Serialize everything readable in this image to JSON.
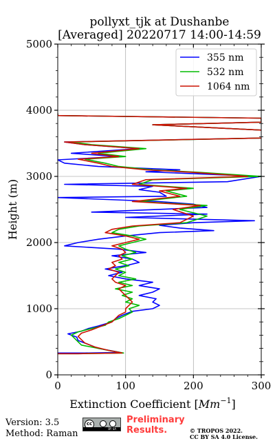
{
  "header": {
    "title_line1": "pollyxt_tjk at Dushanbe",
    "title_line2": "[Averaged] 20220717 14:00-14:59"
  },
  "footer": {
    "version": "Version: 3.5",
    "method": "Method: Raman",
    "preliminary_line1": "Preliminary",
    "preliminary_line2": "Results.",
    "copyright_line1": "© TROPOS 2022.",
    "copyright_line2": "CC BY SA 4.0 License.",
    "license_icon": "cc-by-sa-icon"
  },
  "chart_data": {
    "type": "line",
    "title": "pollyxt_tjk at Dushanbe [Averaged] 20220717 14:00-14:59",
    "xlabel": "Extinction Coefficient [Mm^-1]",
    "ylabel": "Height (m)",
    "xlim": [
      0,
      300
    ],
    "ylim": [
      0,
      5000
    ],
    "xticks": [
      0,
      100,
      200,
      300
    ],
    "yticks": [
      0,
      1000,
      2000,
      3000,
      4000,
      5000
    ],
    "grid": true,
    "legend_position": "top-right",
    "series": [
      {
        "name": "355 nm",
        "color": "#0000ff",
        "points": [
          [
            0,
            330
          ],
          [
            40,
            330
          ],
          [
            92,
            340
          ],
          [
            60,
            400
          ],
          [
            45,
            460
          ],
          [
            30,
            520
          ],
          [
            28,
            570
          ],
          [
            15,
            620
          ],
          [
            35,
            660
          ],
          [
            45,
            700
          ],
          [
            60,
            740
          ],
          [
            80,
            800
          ],
          [
            85,
            850
          ],
          [
            95,
            900
          ],
          [
            110,
            960
          ],
          [
            140,
            1000
          ],
          [
            150,
            1050
          ],
          [
            140,
            1100
          ],
          [
            145,
            1150
          ],
          [
            120,
            1200
          ],
          [
            140,
            1250
          ],
          [
            150,
            1300
          ],
          [
            120,
            1350
          ],
          [
            140,
            1400
          ],
          [
            100,
            1450
          ],
          [
            75,
            1500
          ],
          [
            95,
            1550
          ],
          [
            70,
            1600
          ],
          [
            100,
            1650
          ],
          [
            120,
            1700
          ],
          [
            110,
            1750
          ],
          [
            80,
            1800
          ],
          [
            130,
            1850
          ],
          [
            90,
            1900
          ],
          [
            10,
            1950
          ],
          [
            30,
            2000
          ],
          [
            60,
            2050
          ],
          [
            100,
            2100
          ],
          [
            150,
            2150
          ],
          [
            230,
            2180
          ],
          [
            180,
            2220
          ],
          [
            150,
            2260
          ],
          [
            200,
            2300
          ],
          [
            290,
            2330
          ],
          [
            100,
            2380
          ],
          [
            220,
            2430
          ],
          [
            50,
            2460
          ],
          [
            220,
            2530
          ],
          [
            200,
            2580
          ],
          [
            150,
            2620
          ],
          [
            0,
            2680
          ],
          [
            160,
            2700
          ],
          [
            150,
            2760
          ],
          [
            120,
            2800
          ],
          [
            140,
            2850
          ],
          [
            10,
            2880
          ],
          [
            250,
            2920
          ],
          [
            300,
            3000
          ],
          [
            130,
            3070
          ],
          [
            180,
            3100
          ],
          [
            60,
            3150
          ],
          [
            10,
            3200
          ],
          [
            0,
            3250
          ],
          [
            90,
            3300
          ],
          [
            20,
            3350
          ],
          [
            120,
            3420
          ],
          [
            40,
            3480
          ],
          [
            10,
            3520
          ],
          [
            300,
            3580
          ],
          [
            380,
            3620
          ],
          [
            300,
            3700
          ],
          [
            140,
            3780
          ],
          [
            300,
            3820
          ],
          [
            300,
            3880
          ],
          [
            0,
            3920
          ],
          [
            0,
            3950
          ]
        ]
      },
      {
        "name": "532 nm",
        "color": "#00bb00",
        "points": [
          [
            0,
            320
          ],
          [
            30,
            320
          ],
          [
            97,
            330
          ],
          [
            80,
            360
          ],
          [
            60,
            400
          ],
          [
            35,
            450
          ],
          [
            30,
            500
          ],
          [
            25,
            550
          ],
          [
            20,
            600
          ],
          [
            30,
            650
          ],
          [
            50,
            700
          ],
          [
            70,
            750
          ],
          [
            75,
            800
          ],
          [
            90,
            850
          ],
          [
            100,
            900
          ],
          [
            110,
            950
          ],
          [
            105,
            1000
          ],
          [
            120,
            1050
          ],
          [
            100,
            1100
          ],
          [
            110,
            1150
          ],
          [
            95,
            1200
          ],
          [
            110,
            1250
          ],
          [
            85,
            1300
          ],
          [
            110,
            1350
          ],
          [
            90,
            1400
          ],
          [
            115,
            1450
          ],
          [
            90,
            1500
          ],
          [
            100,
            1550
          ],
          [
            85,
            1600
          ],
          [
            105,
            1650
          ],
          [
            90,
            1700
          ],
          [
            110,
            1750
          ],
          [
            95,
            1800
          ],
          [
            115,
            1850
          ],
          [
            100,
            1900
          ],
          [
            90,
            1950
          ],
          [
            110,
            2000
          ],
          [
            130,
            2050
          ],
          [
            110,
            2100
          ],
          [
            80,
            2150
          ],
          [
            90,
            2200
          ],
          [
            120,
            2250
          ],
          [
            190,
            2300
          ],
          [
            220,
            2400
          ],
          [
            180,
            2500
          ],
          [
            220,
            2560
          ],
          [
            120,
            2620
          ],
          [
            190,
            2700
          ],
          [
            160,
            2780
          ],
          [
            200,
            2820
          ],
          [
            120,
            2880
          ],
          [
            140,
            2950
          ],
          [
            300,
            3000
          ],
          [
            210,
            3060
          ],
          [
            140,
            3100
          ],
          [
            90,
            3150
          ],
          [
            70,
            3200
          ],
          [
            40,
            3260
          ],
          [
            100,
            3300
          ],
          [
            60,
            3350
          ],
          [
            130,
            3420
          ],
          [
            50,
            3480
          ],
          [
            20,
            3520
          ],
          [
            300,
            3580
          ],
          [
            380,
            3620
          ],
          [
            300,
            3700
          ],
          [
            140,
            3780
          ],
          [
            300,
            3820
          ],
          [
            300,
            3880
          ],
          [
            0,
            3920
          ],
          [
            0,
            3950
          ]
        ]
      },
      {
        "name": "1064 nm",
        "color": "#cc1100",
        "points": [
          [
            0,
            320
          ],
          [
            30,
            320
          ],
          [
            95,
            330
          ],
          [
            75,
            370
          ],
          [
            55,
            420
          ],
          [
            40,
            480
          ],
          [
            35,
            530
          ],
          [
            30,
            580
          ],
          [
            35,
            630
          ],
          [
            50,
            680
          ],
          [
            60,
            720
          ],
          [
            70,
            760
          ],
          [
            80,
            800
          ],
          [
            85,
            850
          ],
          [
            90,
            900
          ],
          [
            100,
            950
          ],
          [
            100,
            1000
          ],
          [
            105,
            1050
          ],
          [
            110,
            1100
          ],
          [
            105,
            1150
          ],
          [
            100,
            1200
          ],
          [
            95,
            1250
          ],
          [
            90,
            1300
          ],
          [
            100,
            1350
          ],
          [
            85,
            1400
          ],
          [
            80,
            1450
          ],
          [
            85,
            1500
          ],
          [
            90,
            1550
          ],
          [
            75,
            1600
          ],
          [
            85,
            1650
          ],
          [
            80,
            1700
          ],
          [
            95,
            1750
          ],
          [
            90,
            1800
          ],
          [
            100,
            1850
          ],
          [
            95,
            1900
          ],
          [
            80,
            1950
          ],
          [
            100,
            2000
          ],
          [
            120,
            2050
          ],
          [
            100,
            2100
          ],
          [
            70,
            2150
          ],
          [
            80,
            2200
          ],
          [
            110,
            2250
          ],
          [
            180,
            2300
          ],
          [
            200,
            2400
          ],
          [
            170,
            2500
          ],
          [
            210,
            2560
          ],
          [
            110,
            2620
          ],
          [
            180,
            2700
          ],
          [
            150,
            2780
          ],
          [
            190,
            2820
          ],
          [
            110,
            2880
          ],
          [
            130,
            2950
          ],
          [
            280,
            3000
          ],
          [
            200,
            3060
          ],
          [
            130,
            3100
          ],
          [
            80,
            3150
          ],
          [
            60,
            3200
          ],
          [
            30,
            3260
          ],
          [
            90,
            3300
          ],
          [
            50,
            3350
          ],
          [
            120,
            3420
          ],
          [
            40,
            3480
          ],
          [
            10,
            3520
          ],
          [
            300,
            3580
          ],
          [
            380,
            3620
          ],
          [
            300,
            3700
          ],
          [
            140,
            3780
          ],
          [
            300,
            3820
          ],
          [
            300,
            3880
          ],
          [
            0,
            3920
          ],
          [
            0,
            3950
          ]
        ]
      }
    ]
  }
}
